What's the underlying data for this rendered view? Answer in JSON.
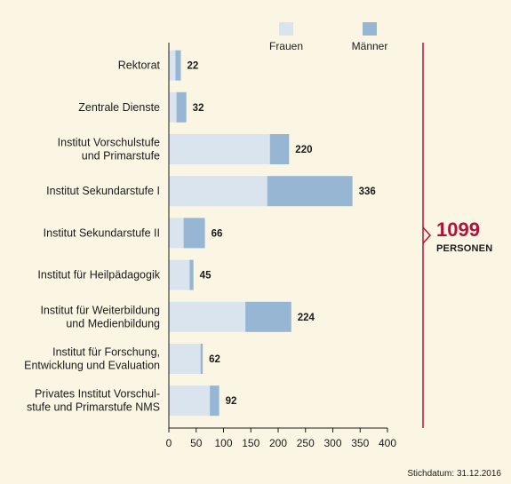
{
  "chart_data": {
    "type": "bar",
    "orientation": "horizontal",
    "stacked": true,
    "categories": [
      [
        "Rektorat"
      ],
      [
        "Zentrale Dienste"
      ],
      [
        "Institut Vorschulstufe",
        "und Primarstufe"
      ],
      [
        "Institut Sekundarstufe I"
      ],
      [
        "Institut Sekundarstufe II"
      ],
      [
        "Institut für Heilpädagogik"
      ],
      [
        "Institut für Weiterbildung",
        "und Medienbildung"
      ],
      [
        "Institut für Forschung,",
        "Entwicklung und Evaluation"
      ],
      [
        "Privates Institut Vorschul-",
        "stufe und Primarstufe NMS"
      ]
    ],
    "series": [
      {
        "name": "Frauen",
        "color": "#d9e4ee",
        "values": [
          12,
          14,
          185,
          180,
          27,
          38,
          140,
          58,
          75
        ]
      },
      {
        "name": "Männer",
        "color": "#97b6d4",
        "values": [
          10,
          18,
          35,
          156,
          39,
          7,
          84,
          4,
          17
        ]
      }
    ],
    "totals": [
      "22",
      "32",
      "220",
      "336",
      "66",
      "45",
      "224",
      "62",
      "92"
    ],
    "x_ticks": [
      "0",
      "50",
      "100",
      "150",
      "200",
      "250",
      "300",
      "350",
      "400"
    ],
    "xlim": [
      0,
      400
    ],
    "legend_position": "top",
    "summary": {
      "value": "1099",
      "label": "PERSONEN",
      "color": "#b0123b"
    },
    "note": "Stichdatum: 31.12.2016"
  }
}
